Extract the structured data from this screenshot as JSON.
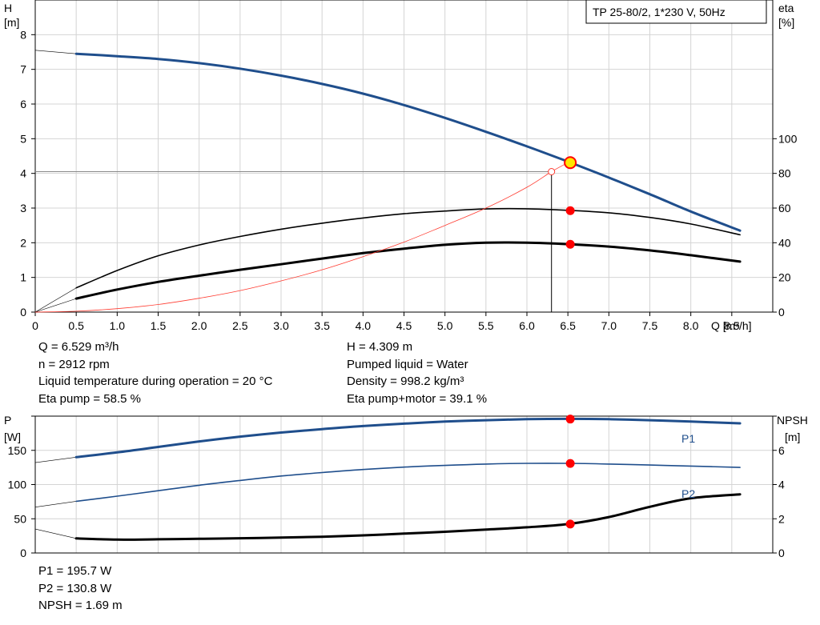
{
  "header": {
    "title": "TP 25-80/2, 1*230 V, 50Hz"
  },
  "top_chart": {
    "info_left": [
      "Q = 6.529 m³/h",
      "n = 2912 rpm",
      "Liquid temperature during operation = 20 °C",
      "Eta pump = 58.5 %"
    ],
    "info_right": [
      "H = 4.309 m",
      "Pumped liquid = Water",
      "Density = 998.2 kg/m³",
      "Eta pump+motor = 39.1 %"
    ]
  },
  "bottom_chart": {
    "info": [
      "P1 = 195.7 W",
      "P2 = 130.8 W",
      "NPSH = 1.69 m"
    ]
  },
  "colors": {
    "head": "#1f4e8c",
    "power": "#1f4e8c",
    "eff": "#000000",
    "npsh": "#000000",
    "system": "#ff3b30",
    "dot": "#ff0000",
    "grid": "#d4d4d4"
  },
  "chart_data": [
    {
      "type": "line",
      "title": "TP 25-80/2, 1*230 V, 50Hz",
      "xlabel": "Q [m³/h]",
      "ylabel": "H [m]",
      "y2label": "eta [%]",
      "xlim": [
        0,
        9
      ],
      "ylim": [
        0,
        9
      ],
      "y2lim": [
        0,
        180
      ],
      "x_ticks": [
        "0",
        "0.5",
        "1.0",
        "1.5",
        "2.0",
        "2.5",
        "3.0",
        "3.5",
        "4.0",
        "4.5",
        "5.0",
        "5.5",
        "6.0",
        "6.5",
        "7.0",
        "7.5",
        "8.0",
        "8.5"
      ],
      "y_ticks": [
        "0",
        "1",
        "2",
        "3",
        "4",
        "5",
        "6",
        "7",
        "8"
      ],
      "y2_ticks": [
        "0",
        "20",
        "40",
        "60",
        "80",
        "100"
      ],
      "grid": true,
      "series": [
        {
          "axis": "left",
          "x": [
            0.5,
            1.0,
            1.5,
            2.0,
            2.5,
            3.0,
            3.5,
            4.0,
            4.5,
            5.0,
            5.5,
            6.0,
            6.5,
            7.0,
            7.5,
            8.0,
            8.6
          ],
          "values": [
            7.45,
            7.38,
            7.3,
            7.18,
            7.02,
            6.82,
            6.58,
            6.3,
            5.97,
            5.6,
            5.2,
            4.78,
            4.34,
            3.88,
            3.4,
            2.9,
            2.35
          ]
        },
        {
          "axis": "left",
          "x": [
            0.0,
            0.5
          ],
          "values": [
            7.55,
            7.45
          ]
        },
        {
          "axis": "right",
          "x": [
            0.5,
            1.0,
            1.5,
            2.0,
            2.5,
            3.0,
            3.5,
            4.0,
            4.5,
            5.0,
            5.5,
            6.0,
            6.5,
            7.0,
            7.5,
            8.0,
            8.6
          ],
          "values": [
            14,
            24,
            32.5,
            38.7,
            43.6,
            47.8,
            51.3,
            54.3,
            56.7,
            58.3,
            59.5,
            59.6,
            58.7,
            57.3,
            54.6,
            50.8,
            44.6
          ]
        },
        {
          "axis": "right",
          "x": [
            0.0,
            0.5
          ],
          "values": [
            0,
            14
          ]
        },
        {
          "axis": "right",
          "x": [
            0.5,
            1.0,
            1.5,
            2.0,
            2.5,
            3.0,
            3.5,
            4.0,
            4.5,
            5.0,
            5.5,
            6.0,
            6.5,
            7.0,
            7.5,
            8.0,
            8.6
          ],
          "values": [
            7.8,
            13,
            17.4,
            21,
            24.4,
            27.6,
            30.9,
            34,
            36.6,
            38.8,
            40,
            40,
            39.2,
            37.8,
            35.6,
            32.8,
            29.1
          ]
        },
        {
          "axis": "right",
          "x": [
            0.0,
            0.5
          ],
          "values": [
            0,
            7.8
          ]
        },
        {
          "axis": "left",
          "x": [
            0.0,
            0.5,
            1.0,
            1.5,
            2.0,
            2.5,
            3.0,
            3.5,
            4.0,
            4.5,
            5.0,
            5.5,
            6.0,
            6.3,
            6.5
          ],
          "values": [
            0,
            0.025,
            0.1,
            0.22,
            0.4,
            0.62,
            0.9,
            1.22,
            1.6,
            2.02,
            2.5,
            3.0,
            3.6,
            4.05,
            4.31
          ]
        }
      ],
      "operating_point": {
        "x": 6.529,
        "y": 4.309
      },
      "points_right_axis": [
        58.5,
        39.1
      ],
      "system_point": {
        "x": 6.3,
        "y": 4.05
      }
    },
    {
      "type": "line",
      "xlabel": "",
      "ylabel": "P [W]",
      "y2label": "NPSH [m]",
      "xlim": [
        0,
        9
      ],
      "ylim": [
        0,
        200
      ],
      "y2lim": [
        0,
        8
      ],
      "y_ticks": [
        "0",
        "50",
        "100",
        "150"
      ],
      "y2_ticks": [
        "0",
        "2",
        "4",
        "6"
      ],
      "grid": true,
      "series": [
        {
          "name": "P1",
          "axis": "left",
          "x": [
            0.5,
            1.0,
            1.5,
            2.0,
            2.5,
            3.0,
            3.5,
            4.0,
            4.5,
            5.0,
            5.5,
            6.0,
            6.5,
            7.0,
            7.5,
            8.0,
            8.6
          ],
          "values": [
            140,
            147,
            155,
            163,
            170,
            176,
            181,
            185.5,
            189,
            192,
            194,
            195.5,
            196,
            195.5,
            194,
            192,
            189.5
          ]
        },
        {
          "axis": "left",
          "x": [
            0.0,
            0.5
          ],
          "values": [
            132,
            140
          ]
        },
        {
          "name": "P2",
          "axis": "left",
          "x": [
            0.5,
            1.0,
            1.5,
            2.0,
            2.5,
            3.0,
            3.5,
            4.0,
            4.5,
            5.0,
            5.5,
            6.0,
            6.5,
            7.0,
            7.5,
            8.0,
            8.6
          ],
          "values": [
            75.5,
            83,
            91,
            99,
            106,
            112.5,
            117.5,
            122,
            125.5,
            128,
            130,
            131,
            131,
            130,
            128.5,
            127,
            125
          ]
        },
        {
          "axis": "left",
          "x": [
            0.0,
            0.5
          ],
          "values": [
            67,
            75.5
          ]
        },
        {
          "axis": "right",
          "x": [
            0.5,
            1.0,
            1.5,
            2.0,
            2.5,
            3.0,
            3.5,
            4.0,
            4.5,
            5.0,
            5.5,
            6.0,
            6.5,
            7.0,
            7.5,
            8.0,
            8.6
          ],
          "values": [
            0.85,
            0.78,
            0.8,
            0.83,
            0.86,
            0.9,
            0.95,
            1.03,
            1.13,
            1.24,
            1.37,
            1.5,
            1.69,
            2.1,
            2.7,
            3.2,
            3.43
          ]
        },
        {
          "axis": "right",
          "x": [
            0.0,
            0.5
          ],
          "values": [
            1.4,
            0.85
          ]
        }
      ],
      "points_left_axis": [
        195.7,
        130.8
      ],
      "points_right_axis": [
        1.69
      ],
      "point_x": 6.529
    }
  ]
}
